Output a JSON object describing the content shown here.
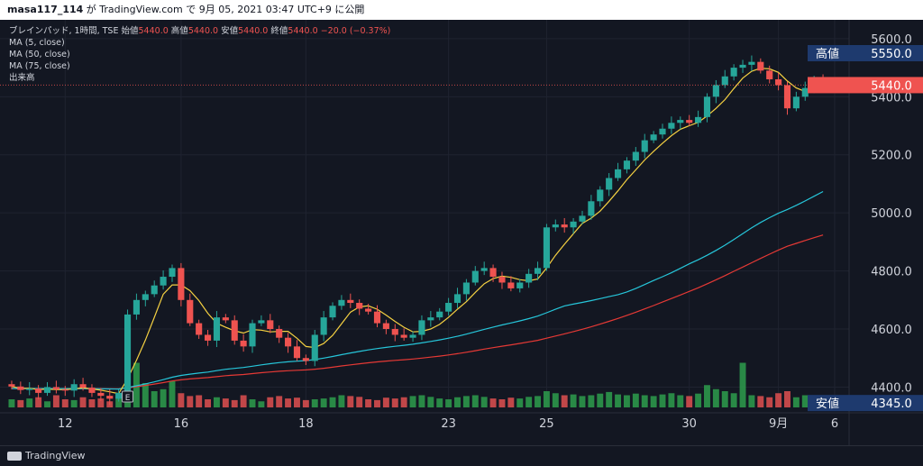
{
  "header": {
    "user": "masa117_114",
    "credit": "が TradingView.com で 9月 05, 2021 03:47 UTC+9 に公開"
  },
  "legend": {
    "symbol": "ブレインパッド, 1時間, TSE",
    "open_label": "始値",
    "open": "5440.0",
    "high_label": "高値",
    "high": "5440.0",
    "low_label": "安値",
    "low": "5440.0",
    "close_label": "終値",
    "close": "5440.0",
    "change": "−20.0 (−0.37%)",
    "ma5": "MA (5, close)",
    "ma50": "MA (50, close)",
    "ma75": "MA (75, close)",
    "volume": "出来高"
  },
  "price_tags": {
    "high_label": "高値",
    "high_value": "5550.0",
    "last_value": "5440.0",
    "low_label": "安値",
    "low_value": "4345.0"
  },
  "footer": {
    "brand": "TradingView"
  },
  "chart_data": {
    "type": "candlestick",
    "interval": "1h",
    "y_ticks": [
      "5600.0",
      "5400.0",
      "5200.0",
      "5000.0",
      "4800.0",
      "4600.0",
      "4400.0"
    ],
    "y_tick_values": [
      5600,
      5400,
      5200,
      5000,
      4800,
      4600,
      4400
    ],
    "x_ticks": [
      "12",
      "16",
      "18",
      "23",
      "25",
      "30",
      "9月",
      "6"
    ],
    "ylim": [
      4330,
      5640
    ],
    "colors": {
      "up": "#26a69a",
      "down": "#ef5350",
      "ma5": "#f5d142",
      "ma50": "#26c6da",
      "ma75": "#e53935",
      "vol_up": "#2e9e4c",
      "vol_down": "#e05050"
    },
    "close": [
      4402,
      4390,
      4395,
      4380,
      4400,
      4392,
      4388,
      4410,
      4398,
      4380,
      4370,
      4360,
      4380,
      4650,
      4700,
      4720,
      4750,
      4780,
      4810,
      4700,
      4620,
      4580,
      4560,
      4640,
      4630,
      4560,
      4540,
      4620,
      4630,
      4600,
      4570,
      4540,
      4500,
      4490,
      4580,
      4640,
      4680,
      4700,
      4690,
      4670,
      4660,
      4620,
      4600,
      4580,
      4570,
      4580,
      4630,
      4640,
      4660,
      4690,
      4720,
      4760,
      4800,
      4810,
      4780,
      4760,
      4740,
      4760,
      4790,
      4810,
      4950,
      4960,
      4950,
      4970,
      4990,
      5040,
      5080,
      5120,
      5150,
      5180,
      5210,
      5250,
      5270,
      5290,
      5310,
      5320,
      5310,
      5330,
      5400,
      5440,
      5470,
      5500,
      5510,
      5520,
      5490,
      5460,
      5440,
      5360,
      5400,
      5430,
      5460,
      5440
    ],
    "volume": [
      20,
      18,
      22,
      25,
      15,
      30,
      20,
      18,
      25,
      20,
      22,
      15,
      28,
      160,
      110,
      60,
      40,
      45,
      65,
      35,
      28,
      30,
      20,
      25,
      22,
      18,
      30,
      20,
      15,
      25,
      28,
      22,
      24,
      18,
      20,
      22,
      25,
      30,
      28,
      26,
      20,
      18,
      24,
      22,
      25,
      28,
      30,
      26,
      22,
      20,
      25,
      28,
      30,
      26,
      22,
      20,
      24,
      22,
      26,
      28,
      40,
      35,
      30,
      32,
      28,
      30,
      34,
      38,
      32,
      30,
      34,
      30,
      28,
      32,
      35,
      30,
      28,
      34,
      55,
      45,
      40,
      35,
      110,
      30,
      28,
      25,
      35,
      40,
      25,
      30,
      28,
      20
    ]
  }
}
